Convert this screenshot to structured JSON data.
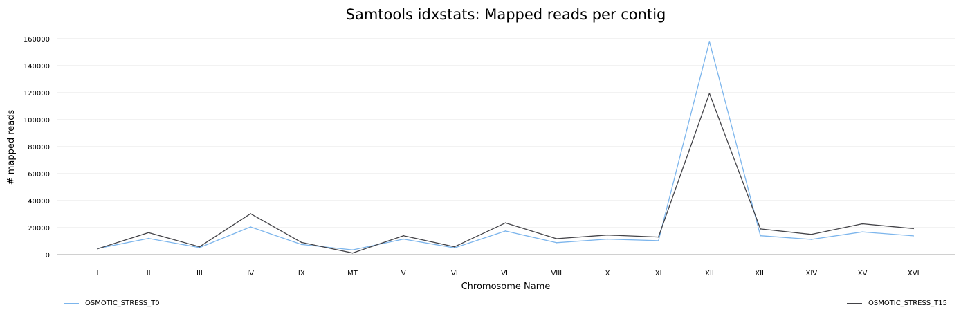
{
  "chart_data": {
    "type": "line",
    "title": "Samtools idxstats: Mapped reads per contig",
    "xlabel": "Chromosome Name",
    "ylabel": "# mapped reads",
    "categories": [
      "I",
      "II",
      "III",
      "IV",
      "IX",
      "MT",
      "V",
      "VI",
      "VII",
      "VIII",
      "X",
      "XI",
      "XII",
      "XIII",
      "XIV",
      "XV",
      "XVI"
    ],
    "ylim": [
      0,
      160000
    ],
    "yticks": [
      0,
      20000,
      40000,
      60000,
      80000,
      100000,
      120000,
      140000,
      160000
    ],
    "grid": true,
    "legend_position": "bottom",
    "series": [
      {
        "name": "OSMOTIC_STRESS_T0",
        "color": "#7cb5ec",
        "values": [
          4500,
          12000,
          5200,
          20500,
          7500,
          3500,
          11500,
          5000,
          17500,
          8800,
          11500,
          10300,
          158000,
          14000,
          11300,
          16800,
          13900
        ]
      },
      {
        "name": "OSMOTIC_STRESS_T15",
        "color": "#434348",
        "values": [
          4300,
          16300,
          5800,
          30300,
          9000,
          1200,
          14000,
          5800,
          23500,
          11800,
          14500,
          13000,
          119500,
          19000,
          15000,
          22800,
          19300
        ]
      }
    ]
  }
}
